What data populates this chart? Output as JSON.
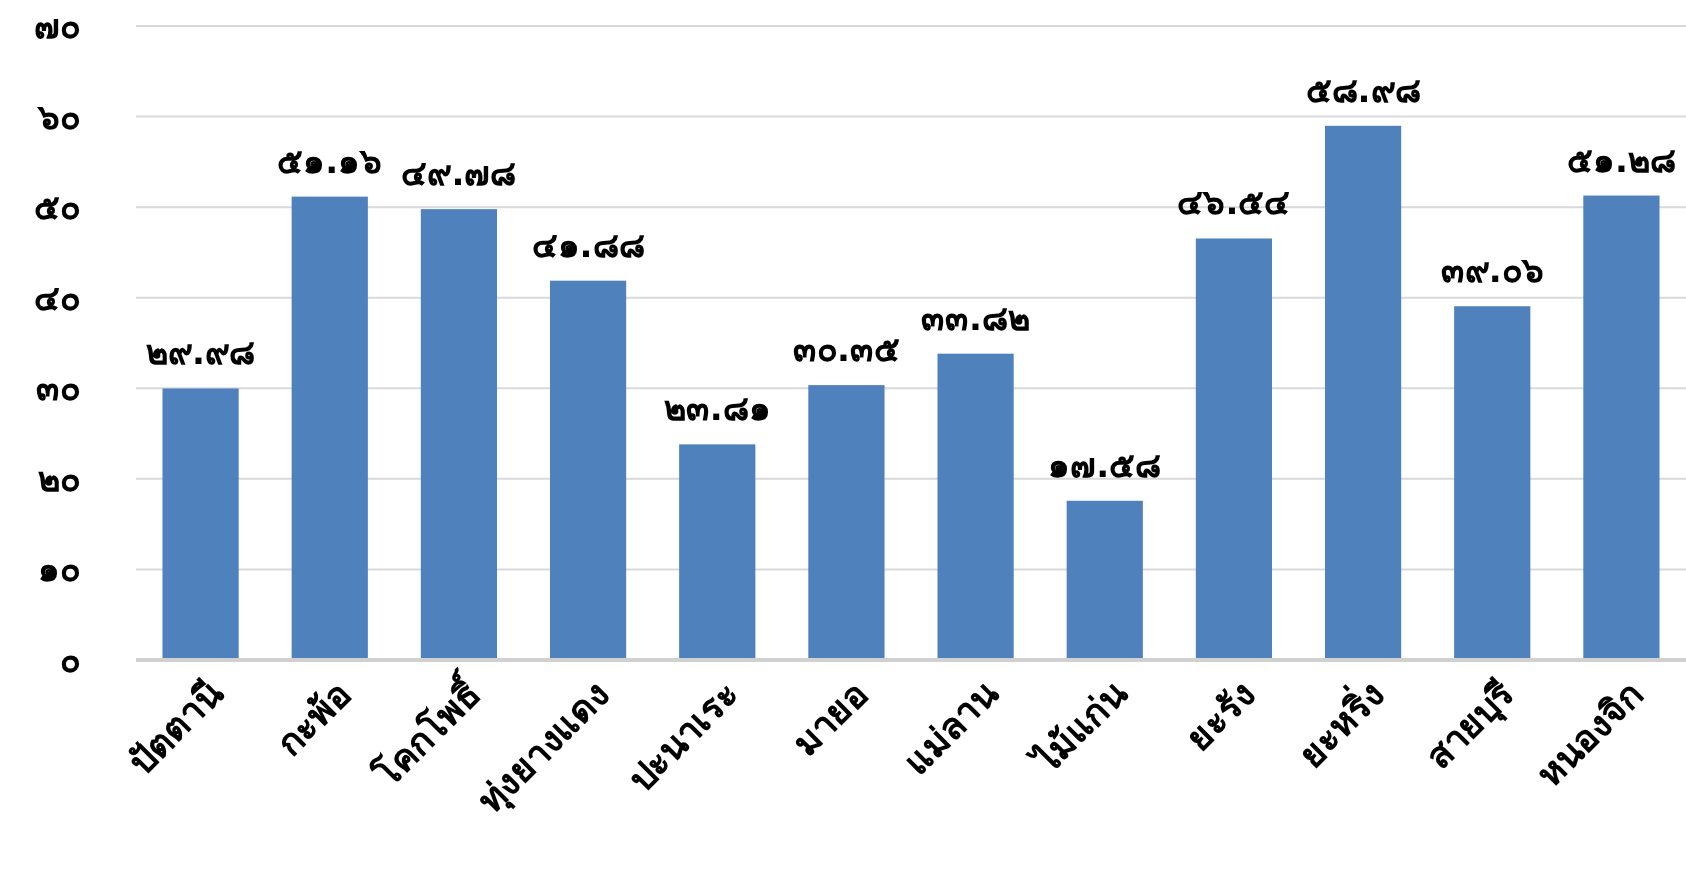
{
  "chart_data": {
    "type": "bar",
    "categories": [
      "ปัตตานี",
      "กะพ้อ",
      "โคกโพธิ์",
      "ทุ่งยางแดง",
      "ปะนาเระ",
      "มายอ",
      "แม่ลาน",
      "ไม้แก่น",
      "ยะรัง",
      "ยะหริ่ง",
      "สายบุรี",
      "หนองจิก"
    ],
    "values": [
      29.98,
      51.16,
      49.78,
      41.88,
      23.81,
      30.35,
      33.82,
      17.58,
      46.54,
      58.98,
      39.06,
      51.28
    ],
    "value_labels": [
      "๒๙.๙๘",
      "๕๑.๑๖",
      "๔๙.๗๘",
      "๔๑.๘๘",
      "๒๓.๘๑",
      "๓๐.๓๕",
      "๓๓.๘๒",
      "๑๗.๕๘",
      "๔๖.๕๔",
      "๕๘.๙๘",
      "๓๙.๐๖",
      "๕๑.๒๘"
    ],
    "color": "#4f81bd",
    "ylim": [
      0,
      70
    ],
    "yticks": [
      {
        "value": 0,
        "label": "๐"
      },
      {
        "value": 10,
        "label": "๑๐"
      },
      {
        "value": 20,
        "label": "๒๐"
      },
      {
        "value": 30,
        "label": "๓๐"
      },
      {
        "value": 40,
        "label": "๔๐"
      },
      {
        "value": 50,
        "label": "๕๐"
      },
      {
        "value": 60,
        "label": "๖๐"
      },
      {
        "value": 70,
        "label": "๗๐"
      }
    ],
    "grid": "y"
  }
}
